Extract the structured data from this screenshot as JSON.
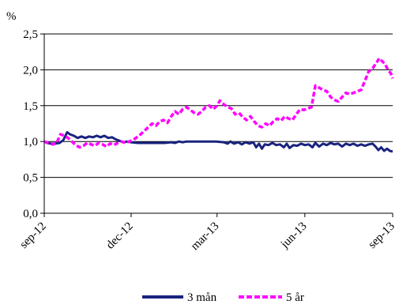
{
  "chart_data": {
    "type": "line",
    "ylabel": "%",
    "ylim": [
      0,
      2.5
    ],
    "yticks": [
      "0,0",
      "0,5",
      "1,0",
      "1,5",
      "2,0",
      "2,5"
    ],
    "ytick_values": [
      0,
      0.5,
      1,
      1.5,
      2,
      2.5
    ],
    "xlim": [
      "2012-09-01",
      "2013-09-01"
    ],
    "xticks": [
      "sep-12",
      "dec-12",
      "mar-13",
      "jun-13",
      "sep-13"
    ],
    "xtick_dates": [
      "2012-09-01",
      "2012-12-01",
      "2013-03-01",
      "2013-06-01",
      "2013-09-01"
    ],
    "grid": "horizontal",
    "legend_position": "bottom",
    "series": [
      {
        "name": "3 mån",
        "color": "#1a237e",
        "style": "solid",
        "points": [
          [
            "2012-09-01",
            1.0
          ],
          [
            "2012-09-04",
            0.98
          ],
          [
            "2012-09-08",
            0.97
          ],
          [
            "2012-09-12",
            0.97
          ],
          [
            "2012-09-17",
            0.98
          ],
          [
            "2012-09-21",
            1.02
          ],
          [
            "2012-09-25",
            1.13
          ],
          [
            "2012-09-28",
            1.1
          ],
          [
            "2012-10-02",
            1.08
          ],
          [
            "2012-10-06",
            1.05
          ],
          [
            "2012-10-10",
            1.07
          ],
          [
            "2012-10-14",
            1.05
          ],
          [
            "2012-10-18",
            1.07
          ],
          [
            "2012-10-22",
            1.06
          ],
          [
            "2012-10-26",
            1.08
          ],
          [
            "2012-10-30",
            1.06
          ],
          [
            "2012-11-03",
            1.08
          ],
          [
            "2012-11-07",
            1.05
          ],
          [
            "2012-11-11",
            1.06
          ],
          [
            "2012-11-15",
            1.03
          ],
          [
            "2012-11-19",
            1.01
          ],
          [
            "2012-11-23",
            0.99
          ],
          [
            "2012-11-27",
            1.0
          ],
          [
            "2012-12-01",
            0.99
          ],
          [
            "2012-12-08",
            0.98
          ],
          [
            "2012-12-15",
            0.98
          ],
          [
            "2012-12-22",
            0.98
          ],
          [
            "2012-12-29",
            0.98
          ],
          [
            "2013-01-05",
            0.98
          ],
          [
            "2013-01-12",
            0.99
          ],
          [
            "2013-01-16",
            0.98
          ],
          [
            "2013-01-20",
            1.0
          ],
          [
            "2013-01-24",
            0.99
          ],
          [
            "2013-01-28",
            1.0
          ],
          [
            "2013-02-01",
            1.0
          ],
          [
            "2013-02-10",
            1.0
          ],
          [
            "2013-02-20",
            1.0
          ],
          [
            "2013-02-28",
            1.0
          ],
          [
            "2013-03-08",
            0.99
          ],
          [
            "2013-03-12",
            0.97
          ],
          [
            "2013-03-15",
            1.0
          ],
          [
            "2013-03-19",
            0.97
          ],
          [
            "2013-03-23",
            0.99
          ],
          [
            "2013-03-27",
            0.96
          ],
          [
            "2013-03-31",
            0.99
          ],
          [
            "2013-04-04",
            0.97
          ],
          [
            "2013-04-08",
            0.99
          ],
          [
            "2013-04-11",
            0.92
          ],
          [
            "2013-04-14",
            0.97
          ],
          [
            "2013-04-17",
            0.9
          ],
          [
            "2013-04-20",
            0.96
          ],
          [
            "2013-04-24",
            0.95
          ],
          [
            "2013-04-28",
            0.98
          ],
          [
            "2013-05-02",
            0.95
          ],
          [
            "2013-05-06",
            0.96
          ],
          [
            "2013-05-10",
            0.92
          ],
          [
            "2013-05-13",
            0.97
          ],
          [
            "2013-05-16",
            0.91
          ],
          [
            "2013-05-20",
            0.95
          ],
          [
            "2013-05-24",
            0.94
          ],
          [
            "2013-05-28",
            0.97
          ],
          [
            "2013-06-01",
            0.95
          ],
          [
            "2013-06-05",
            0.96
          ],
          [
            "2013-06-09",
            0.92
          ],
          [
            "2013-06-12",
            0.98
          ],
          [
            "2013-06-16",
            0.93
          ],
          [
            "2013-06-20",
            0.97
          ],
          [
            "2013-06-24",
            0.95
          ],
          [
            "2013-06-28",
            0.98
          ],
          [
            "2013-07-02",
            0.96
          ],
          [
            "2013-07-06",
            0.97
          ],
          [
            "2013-07-10",
            0.93
          ],
          [
            "2013-07-14",
            0.97
          ],
          [
            "2013-07-18",
            0.95
          ],
          [
            "2013-07-22",
            0.97
          ],
          [
            "2013-07-26",
            0.94
          ],
          [
            "2013-07-30",
            0.96
          ],
          [
            "2013-08-03",
            0.94
          ],
          [
            "2013-08-07",
            0.96
          ],
          [
            "2013-08-11",
            0.97
          ],
          [
            "2013-08-14",
            0.93
          ],
          [
            "2013-08-17",
            0.88
          ],
          [
            "2013-08-20",
            0.92
          ],
          [
            "2013-08-23",
            0.87
          ],
          [
            "2013-08-26",
            0.9
          ],
          [
            "2013-08-29",
            0.87
          ],
          [
            "2013-09-01",
            0.86
          ]
        ]
      },
      {
        "name": "5 år",
        "color": "#ff00ff",
        "style": "dashed",
        "points": [
          [
            "2012-09-01",
            1.0
          ],
          [
            "2012-09-05",
            0.98
          ],
          [
            "2012-09-10",
            0.96
          ],
          [
            "2012-09-14",
            0.98
          ],
          [
            "2012-09-18",
            1.1
          ],
          [
            "2012-09-22",
            1.08
          ],
          [
            "2012-09-26",
            1.05
          ],
          [
            "2012-09-30",
            1.0
          ],
          [
            "2012-10-04",
            0.95
          ],
          [
            "2012-10-08",
            0.92
          ],
          [
            "2012-10-12",
            0.94
          ],
          [
            "2012-10-16",
            0.98
          ],
          [
            "2012-10-20",
            0.96
          ],
          [
            "2012-10-24",
            0.94
          ],
          [
            "2012-10-28",
            0.98
          ],
          [
            "2012-11-01",
            0.96
          ],
          [
            "2012-11-05",
            0.93
          ],
          [
            "2012-11-09",
            0.97
          ],
          [
            "2012-11-13",
            0.95
          ],
          [
            "2012-11-17",
            0.98
          ],
          [
            "2012-11-21",
            1.0
          ],
          [
            "2012-11-25",
            0.98
          ],
          [
            "2012-11-29",
            1.0
          ],
          [
            "2012-12-03",
            1.02
          ],
          [
            "2012-12-07",
            1.06
          ],
          [
            "2012-12-11",
            1.1
          ],
          [
            "2012-12-15",
            1.15
          ],
          [
            "2012-12-19",
            1.2
          ],
          [
            "2012-12-23",
            1.25
          ],
          [
            "2012-12-27",
            1.22
          ],
          [
            "2012-12-31",
            1.28
          ],
          [
            "2013-01-04",
            1.3
          ],
          [
            "2013-01-08",
            1.26
          ],
          [
            "2013-01-12",
            1.35
          ],
          [
            "2013-01-16",
            1.42
          ],
          [
            "2013-01-20",
            1.38
          ],
          [
            "2013-01-24",
            1.45
          ],
          [
            "2013-01-28",
            1.48
          ],
          [
            "2013-02-01",
            1.44
          ],
          [
            "2013-02-05",
            1.4
          ],
          [
            "2013-02-09",
            1.38
          ],
          [
            "2013-02-13",
            1.42
          ],
          [
            "2013-02-17",
            1.48
          ],
          [
            "2013-02-21",
            1.5
          ],
          [
            "2013-02-25",
            1.45
          ],
          [
            "2013-03-01",
            1.5
          ],
          [
            "2013-03-04",
            1.57
          ],
          [
            "2013-03-08",
            1.52
          ],
          [
            "2013-03-12",
            1.48
          ],
          [
            "2013-03-16",
            1.46
          ],
          [
            "2013-03-20",
            1.38
          ],
          [
            "2013-03-24",
            1.4
          ],
          [
            "2013-03-28",
            1.34
          ],
          [
            "2013-04-01",
            1.3
          ],
          [
            "2013-04-05",
            1.35
          ],
          [
            "2013-04-09",
            1.28
          ],
          [
            "2013-04-13",
            1.22
          ],
          [
            "2013-04-17",
            1.2
          ],
          [
            "2013-04-21",
            1.25
          ],
          [
            "2013-04-25",
            1.22
          ],
          [
            "2013-04-29",
            1.28
          ],
          [
            "2013-05-03",
            1.32
          ],
          [
            "2013-05-07",
            1.29
          ],
          [
            "2013-05-11",
            1.35
          ],
          [
            "2013-05-15",
            1.32
          ],
          [
            "2013-05-19",
            1.3
          ],
          [
            "2013-05-23",
            1.38
          ],
          [
            "2013-05-27",
            1.45
          ],
          [
            "2013-05-31",
            1.44
          ],
          [
            "2013-06-04",
            1.46
          ],
          [
            "2013-06-08",
            1.48
          ],
          [
            "2013-06-12",
            1.78
          ],
          [
            "2013-06-16",
            1.75
          ],
          [
            "2013-06-20",
            1.72
          ],
          [
            "2013-06-24",
            1.7
          ],
          [
            "2013-06-28",
            1.62
          ],
          [
            "2013-07-02",
            1.58
          ],
          [
            "2013-07-06",
            1.56
          ],
          [
            "2013-07-10",
            1.62
          ],
          [
            "2013-07-14",
            1.68
          ],
          [
            "2013-07-18",
            1.66
          ],
          [
            "2013-07-22",
            1.68
          ],
          [
            "2013-07-26",
            1.7
          ],
          [
            "2013-07-30",
            1.72
          ],
          [
            "2013-08-03",
            1.85
          ],
          [
            "2013-08-07",
            1.98
          ],
          [
            "2013-08-11",
            2.02
          ],
          [
            "2013-08-15",
            2.1
          ],
          [
            "2013-08-18",
            2.16
          ],
          [
            "2013-08-21",
            2.12
          ],
          [
            "2013-08-24",
            2.08
          ],
          [
            "2013-08-27",
            2.0
          ],
          [
            "2013-08-30",
            1.95
          ],
          [
            "2013-09-01",
            1.88
          ]
        ]
      }
    ]
  }
}
